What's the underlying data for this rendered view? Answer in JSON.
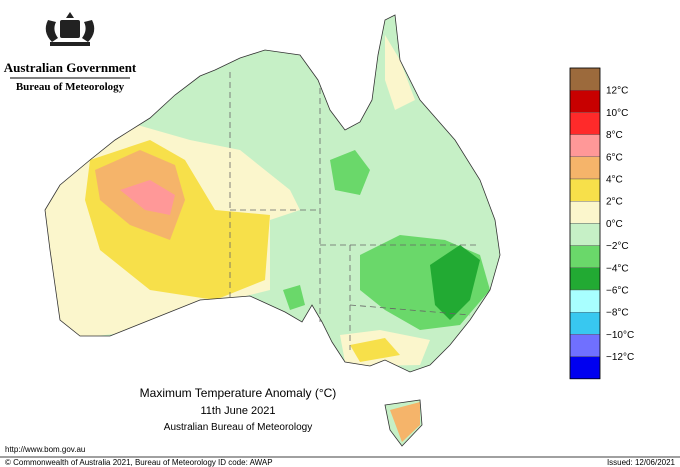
{
  "header": {
    "government": "Australian Government",
    "bureau": "Bureau of Meteorology"
  },
  "map": {
    "title": "Maximum Temperature Anomaly (°C)",
    "date": "11th June 2021",
    "source": "Australian Bureau of Meteorology"
  },
  "legend": {
    "colors": [
      "#9c6a3c",
      "#c80000",
      "#ff2a2a",
      "#ff9898",
      "#f5b46a",
      "#f7e04a",
      "#fbf6cc",
      "#c6f0c6",
      "#6ad86a",
      "#22aa33",
      "#a8ffff",
      "#38c8f0",
      "#7070ff",
      "#0000f0"
    ],
    "labels": [
      "12°C",
      "10°C",
      "8°C",
      "6°C",
      "4°C",
      "2°C",
      "0°C",
      "−2°C",
      "−4°C",
      "−6°C",
      "−8°C",
      "−10°C",
      "−12°C"
    ]
  },
  "footer": {
    "url": "http://www.bom.gov.au",
    "copyright": "© Commonwealth of Australia 2021, Bureau of Meteorology",
    "id_code": "ID code: AWAP",
    "issued": "Issued: 12/06/2021"
  }
}
